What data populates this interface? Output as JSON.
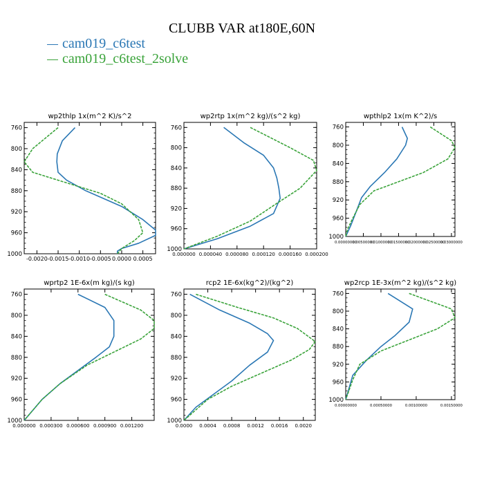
{
  "header": {
    "title": "CLUBB VAR at180E,60N"
  },
  "colors": {
    "series1": "#2a77b4",
    "series2": "#3aa33a",
    "axis": "#000000"
  },
  "legend": [
    {
      "label": "cam019_c6test",
      "color": "#2a77b4"
    },
    {
      "label": "cam019_c6test_2solve",
      "color": "#3aa33a"
    }
  ],
  "chart_data": [
    {
      "type": "line",
      "title": "wp2thlp   1x(m^2 K)/s^2",
      "xlim": [
        -0.0023,
        0.0008
      ],
      "ylim": [
        1000,
        750
      ],
      "y_ticks": [
        760,
        800,
        840,
        880,
        920,
        960,
        1000
      ],
      "x_ticks": [
        -0.002,
        -0.0015,
        -0.001,
        -0.0005,
        0.0,
        0.0005
      ],
      "x_tick_labels": [
        "-0.0020",
        "-0.0015",
        "-0.0010",
        "-0.0005",
        "0.0000",
        "0.0005"
      ],
      "series": [
        {
          "name": "cam019_c6test",
          "points": [
            [
              -0.0011,
              760
            ],
            [
              -0.0014,
              785
            ],
            [
              -0.00152,
              810
            ],
            [
              -0.00153,
              825
            ],
            [
              -0.0015,
              845
            ],
            [
              -0.0013,
              860
            ],
            [
              -0.00085,
              880
            ],
            [
              0.0,
              910
            ],
            [
              0.0005,
              935
            ],
            [
              0.0008,
              955
            ],
            [
              0.0008,
              965
            ],
            [
              0.0004,
              980
            ],
            [
              0.0,
              990
            ],
            [
              -0.0001,
              995
            ],
            [
              -0.0001,
              1000
            ]
          ]
        },
        {
          "name": "cam019_c6test_2solve",
          "points": [
            [
              -0.0015,
              760
            ],
            [
              -0.0021,
              800
            ],
            [
              -0.0023,
              825
            ],
            [
              -0.0021,
              845
            ],
            [
              -0.0015,
              860
            ],
            [
              -0.0005,
              885
            ],
            [
              0.0,
              905
            ],
            [
              0.0004,
              935
            ],
            [
              0.0005,
              960
            ],
            [
              0.0003,
              975
            ],
            [
              0.0,
              990
            ],
            [
              -0.0001,
              1000
            ]
          ]
        }
      ]
    },
    {
      "type": "line",
      "title": "wp2rtp   1x(m^2 kg)/(s^2 kg)",
      "xlim": [
        0.0,
        0.0002
      ],
      "ylim": [
        1000,
        750
      ],
      "y_ticks": [
        760,
        800,
        840,
        880,
        920,
        960,
        1000
      ],
      "x_ticks": [
        0.0,
        4e-05,
        8e-05,
        0.00012,
        0.00016,
        0.0002
      ],
      "x_tick_labels": [
        "0.000000",
        "0.000040",
        "0.000080",
        "0.000120",
        "0.000160",
        "0.000200"
      ],
      "series": [
        {
          "name": "cam019_c6test",
          "points": [
            [
              6e-05,
              760
            ],
            [
              9e-05,
              790
            ],
            [
              0.00012,
              815
            ],
            [
              0.000135,
              840
            ],
            [
              0.00014,
              860
            ],
            [
              0.000143,
              880
            ],
            [
              0.000145,
              900
            ],
            [
              0.000135,
              930
            ],
            [
              0.0001,
              955
            ],
            [
              5e-05,
              980
            ],
            [
              0.0,
              1000
            ]
          ]
        },
        {
          "name": "cam019_c6test_2solve",
          "points": [
            [
              0.0001,
              760
            ],
            [
              0.00016,
              800
            ],
            [
              0.000195,
              825
            ],
            [
              0.0002,
              845
            ],
            [
              0.000175,
              880
            ],
            [
              0.00014,
              910
            ],
            [
              0.0001,
              945
            ],
            [
              5e-05,
              975
            ],
            [
              0.0,
              1000
            ]
          ]
        }
      ]
    },
    {
      "type": "line",
      "title": "wpthlp2   1x(m K^2)/s",
      "xlim": [
        0.0,
        0.031
      ],
      "ylim": [
        1000,
        750
      ],
      "y_ticks": [
        760,
        800,
        840,
        880,
        920,
        960,
        1000
      ],
      "x_ticks": [
        0.0,
        0.005,
        0.01,
        0.015,
        0.02,
        0.025,
        0.03
      ],
      "x_tick_labels": [
        "0.00000000",
        "0.00500000",
        "0.01000000",
        "0.01500000",
        "0.02000000",
        "0.02500000",
        "0.03000000"
      ],
      "series": [
        {
          "name": "cam019_c6test",
          "points": [
            [
              0.016,
              760
            ],
            [
              0.0175,
              785
            ],
            [
              0.017,
              800
            ],
            [
              0.0145,
              830
            ],
            [
              0.011,
              860
            ],
            [
              0.007,
              890
            ],
            [
              0.0045,
              915
            ],
            [
              0.003,
              945
            ],
            [
              0.0015,
              975
            ],
            [
              0.0,
              1000
            ]
          ]
        },
        {
          "name": "cam019_c6test_2solve",
          "points": [
            [
              0.024,
              760
            ],
            [
              0.03,
              790
            ],
            [
              0.031,
              805
            ],
            [
              0.029,
              830
            ],
            [
              0.022,
              860
            ],
            [
              0.015,
              880
            ],
            [
              0.008,
              900
            ],
            [
              0.004,
              930
            ],
            [
              0.002,
              960
            ],
            [
              0.0005,
              985
            ],
            [
              0.0,
              1000
            ]
          ]
        }
      ]
    },
    {
      "type": "line",
      "title": "wprtp2   1E-6x(m kg)/(s kg)",
      "xlim": [
        0.0,
        0.00145
      ],
      "ylim": [
        1000,
        750
      ],
      "y_ticks": [
        760,
        800,
        840,
        880,
        920,
        960,
        1000
      ],
      "x_ticks": [
        0.0,
        0.0003,
        0.0006,
        0.0009,
        0.0012
      ],
      "x_tick_labels": [
        "0.000000",
        "0.000300",
        "0.000600",
        "0.000900",
        "0.001200"
      ],
      "series": [
        {
          "name": "cam019_c6test",
          "points": [
            [
              0.0006,
              760
            ],
            [
              0.0009,
              785
            ],
            [
              0.001,
              810
            ],
            [
              0.001,
              840
            ],
            [
              0.00095,
              860
            ],
            [
              0.0008,
              880
            ],
            [
              0.0006,
              905
            ],
            [
              0.0004,
              930
            ],
            [
              0.0002,
              960
            ],
            [
              0.0,
              1000
            ]
          ]
        },
        {
          "name": "cam019_c6test_2solve",
          "points": [
            [
              0.0009,
              760
            ],
            [
              0.0013,
              790
            ],
            [
              0.00145,
              810
            ],
            [
              0.00145,
              825
            ],
            [
              0.0013,
              845
            ],
            [
              0.001,
              870
            ],
            [
              0.0007,
              895
            ],
            [
              0.0004,
              930
            ],
            [
              0.0002,
              960
            ],
            [
              0.0,
              1000
            ]
          ]
        }
      ]
    },
    {
      "type": "line",
      "title": "rcp2   1E-6x(kg^2)/(kg^2)",
      "xlim": [
        0.0,
        0.0022
      ],
      "ylim": [
        1000,
        750
      ],
      "y_ticks": [
        760,
        800,
        840,
        880,
        920,
        960,
        1000
      ],
      "x_ticks": [
        0.0,
        0.0004,
        0.0008,
        0.0012,
        0.0016,
        0.002
      ],
      "x_tick_labels": [
        "0.0000",
        "0.0004",
        "0.0008",
        "0.0012",
        "0.0016",
        "0.0020"
      ],
      "series": [
        {
          "name": "cam019_c6test",
          "points": [
            [
              0.0001,
              760
            ],
            [
              0.0006,
              790
            ],
            [
              0.0011,
              815
            ],
            [
              0.0014,
              835
            ],
            [
              0.0015,
              848
            ],
            [
              0.0014,
              870
            ],
            [
              0.0011,
              895
            ],
            [
              0.0008,
              925
            ],
            [
              0.0005,
              950
            ],
            [
              0.0002,
              975
            ],
            [
              0.0,
              1000
            ]
          ]
        },
        {
          "name": "cam019_c6test_2solve",
          "points": [
            [
              0.0002,
              760
            ],
            [
              0.0009,
              785
            ],
            [
              0.0015,
              805
            ],
            [
              0.0019,
              825
            ],
            [
              0.0022,
              850
            ],
            [
              0.0021,
              865
            ],
            [
              0.0018,
              885
            ],
            [
              0.0013,
              910
            ],
            [
              0.0008,
              935
            ],
            [
              0.0004,
              960
            ],
            [
              0.0,
              1000
            ]
          ]
        }
      ]
    },
    {
      "type": "line",
      "title": "wp2rcp   1E-3x(m^2 kg)/(s^2 kg)",
      "xlim": [
        0.0,
        0.00155
      ],
      "ylim": [
        1000,
        750
      ],
      "y_ticks": [
        760,
        800,
        840,
        880,
        920,
        960,
        1000
      ],
      "x_ticks": [
        0.0,
        0.0005,
        0.001,
        0.0015
      ],
      "x_tick_labels": [
        "0.00000000",
        "0.00050000",
        "0.00100000",
        "0.00150000"
      ],
      "series": [
        {
          "name": "cam019_c6test",
          "points": [
            [
              0.0006,
              760
            ],
            [
              0.00095,
              795
            ],
            [
              0.0009,
              825
            ],
            [
              0.0007,
              855
            ],
            [
              0.0005,
              880
            ],
            [
              0.0003,
              910
            ],
            [
              0.0001,
              945
            ],
            [
              0.0,
              1000
            ]
          ]
        },
        {
          "name": "cam019_c6test_2solve",
          "points": [
            [
              0.0009,
              760
            ],
            [
              0.0015,
              795
            ],
            [
              0.00155,
              815
            ],
            [
              0.0013,
              840
            ],
            [
              0.0009,
              865
            ],
            [
              0.0005,
              890
            ],
            [
              0.0002,
              920
            ],
            [
              0.0001,
              955
            ],
            [
              0.0,
              1000
            ]
          ]
        }
      ]
    }
  ]
}
